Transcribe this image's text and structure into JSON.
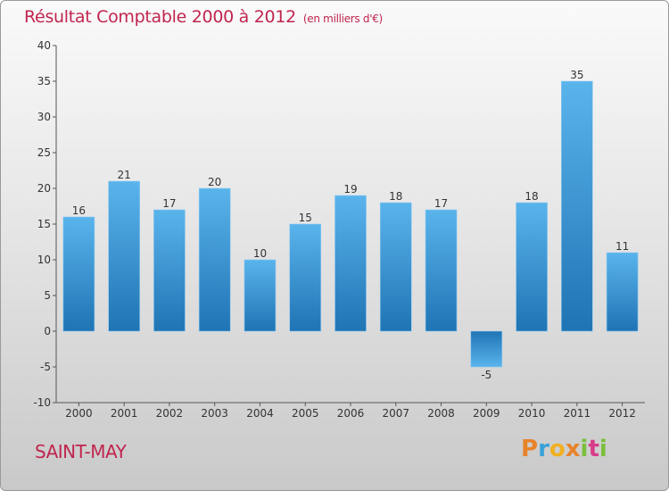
{
  "chart_data": {
    "type": "bar",
    "title": "Résultat Comptable 2000 à 2012",
    "subtitle": "(en milliers d'€)",
    "categories": [
      "2000",
      "2001",
      "2002",
      "2003",
      "2004",
      "2005",
      "2006",
      "2007",
      "2008",
      "2009",
      "2010",
      "2011",
      "2012"
    ],
    "values": [
      16,
      21,
      17,
      20,
      10,
      15,
      19,
      18,
      17,
      -5,
      18,
      35,
      11
    ],
    "ylim": [
      -10,
      40
    ],
    "yticks": [
      -10,
      -5,
      0,
      5,
      10,
      15,
      20,
      25,
      30,
      35,
      40
    ],
    "grid": false,
    "xlabel": "",
    "ylabel": ""
  },
  "place_name": "SAINT-MAY",
  "brand": {
    "letters": [
      "P",
      "r",
      "o",
      "x",
      "i",
      "t",
      "i"
    ],
    "name": "Proxiti"
  },
  "colors": {
    "title": "#c0254e",
    "bar_top": "#5ab4ec",
    "bar_bottom": "#1f74b4"
  }
}
